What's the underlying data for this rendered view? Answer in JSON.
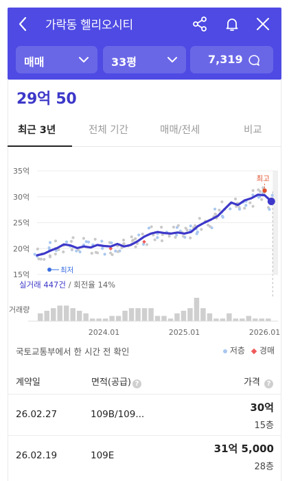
{
  "header": {
    "title": "가락동 헬리오시티",
    "filters": {
      "trade_type": "매매",
      "size": "33평",
      "comments_count": "7,319"
    }
  },
  "price": "29억 50",
  "tabs": [
    "최근 3년",
    "전체 기간",
    "매매/전세",
    "비교"
  ],
  "chart": {
    "y_ticks": [
      "35억",
      "30억",
      "25억",
      "20억",
      "15억"
    ],
    "x_ticks": [
      "2024.01",
      "2025.01",
      "2026.01"
    ],
    "max_label": "최고",
    "min_label": "최저",
    "stats_count": "실거래 447건",
    "stats_turnover": "/ 회전율 14%",
    "volume_label": "거래량"
  },
  "chart_data": {
    "type": "line",
    "y_unit": "억",
    "ylim": [
      15,
      35
    ],
    "x_range": [
      "2023.03",
      "2026.03"
    ],
    "series": [
      {
        "points": [
          [
            "2023.03",
            18.7
          ],
          [
            "2023.04",
            19.0
          ],
          [
            "2023.05",
            19.6
          ],
          [
            "2023.06",
            20.1
          ],
          [
            "2023.07",
            20.8
          ],
          [
            "2023.08",
            20.6
          ],
          [
            "2023.09",
            20.1
          ],
          [
            "2023.10",
            20.4
          ],
          [
            "2023.11",
            20.2
          ],
          [
            "2023.12",
            20.7
          ],
          [
            "2024.01",
            20.5
          ],
          [
            "2024.02",
            20.4
          ],
          [
            "2024.03",
            20.9
          ],
          [
            "2024.04",
            20.4
          ],
          [
            "2024.05",
            20.7
          ],
          [
            "2024.06",
            21.4
          ],
          [
            "2024.07",
            22.3
          ],
          [
            "2024.08",
            22.9
          ],
          [
            "2024.09",
            23.2
          ],
          [
            "2024.10",
            23.0
          ],
          [
            "2024.11",
            22.9
          ],
          [
            "2024.12",
            23.1
          ],
          [
            "2025.01",
            22.9
          ],
          [
            "2025.02",
            23.2
          ],
          [
            "2025.03",
            24.3
          ],
          [
            "2025.04",
            25.0
          ],
          [
            "2025.05",
            25.6
          ],
          [
            "2025.06",
            26.3
          ],
          [
            "2025.07",
            27.6
          ],
          [
            "2025.08",
            28.9
          ],
          [
            "2025.09",
            28.4
          ],
          [
            "2025.10",
            29.3
          ],
          [
            "2025.11",
            29.7
          ],
          [
            "2025.12",
            30.4
          ],
          [
            "2026.01",
            30.3
          ],
          [
            "2026.02",
            29.1
          ]
        ]
      }
    ],
    "max_point": [
      "2026.01",
      31.2
    ],
    "min_point": [
      "2023.03",
      18.5
    ],
    "volume": [
      3,
      4,
      5,
      6,
      6,
      5,
      4,
      3,
      1,
      1,
      1,
      2,
      2,
      4,
      5,
      5,
      5,
      5,
      2,
      2,
      1,
      3,
      4,
      5,
      9,
      5,
      3,
      1,
      1,
      3,
      1,
      1,
      2,
      1,
      1,
      1
    ]
  },
  "source_note": "국토교통부에서 한 시간 전 확인",
  "legend": [
    {
      "label": "저층",
      "color": "#a9c7f0"
    },
    {
      "label": "경매",
      "color": "#f05a5a"
    }
  ],
  "table": {
    "headers": [
      "계약일",
      "면적(공급)",
      "가격"
    ],
    "rows": [
      {
        "date": "26.02.27",
        "area": "109B/109...",
        "price": "30억",
        "floor": "15층"
      },
      {
        "date": "26.02.19",
        "area": "109E",
        "price": "31억 5,000",
        "floor": "28층"
      }
    ]
  },
  "colors": {
    "accent": "#4e4ae3",
    "line": "#3d38c9",
    "max": "#e0502b"
  }
}
